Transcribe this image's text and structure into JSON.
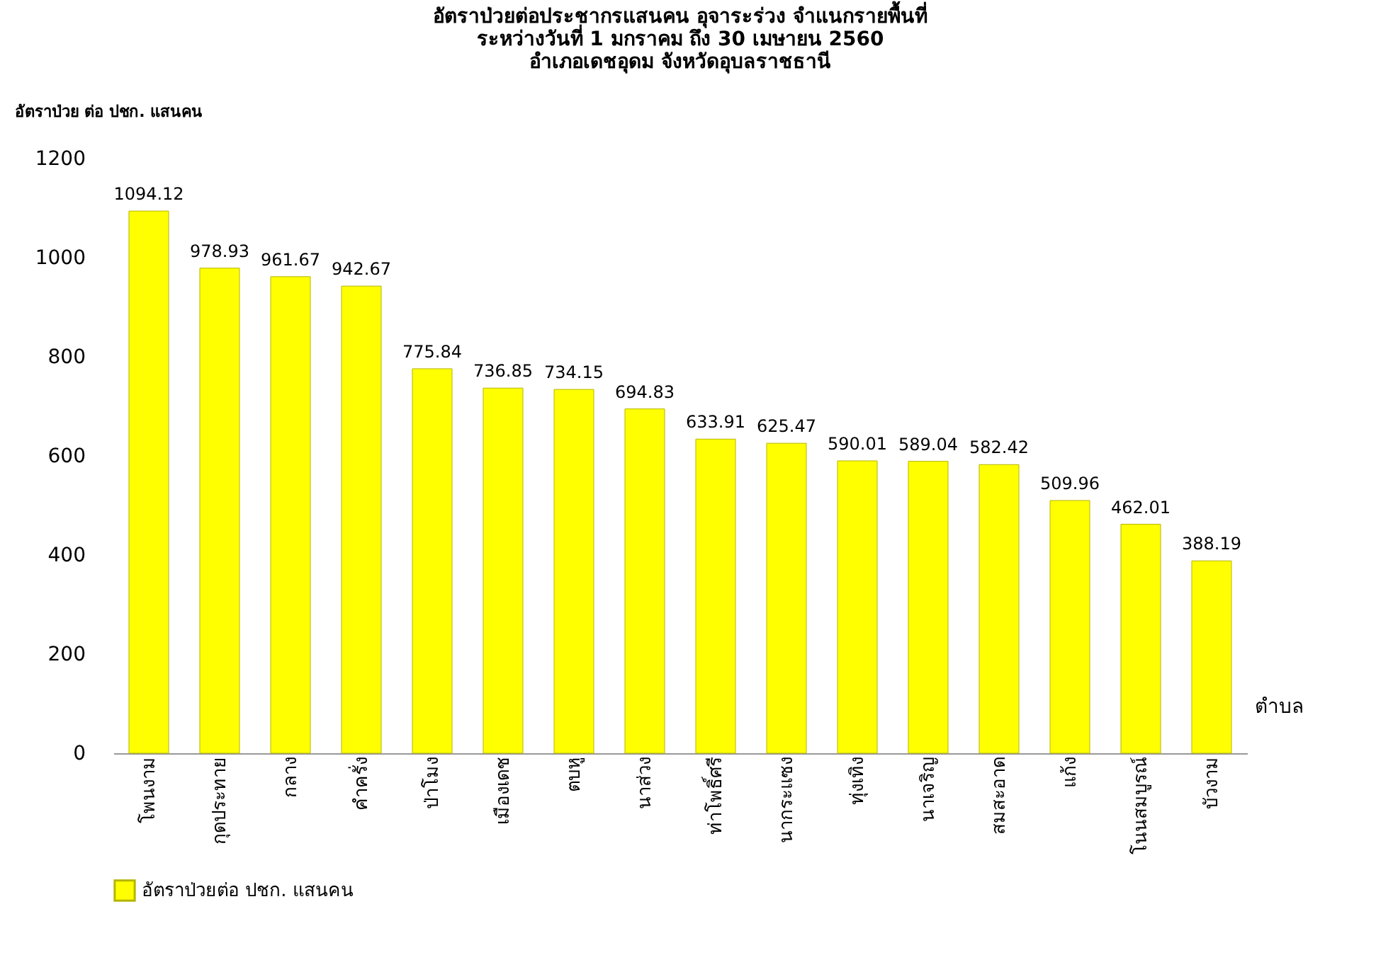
{
  "chart_data": {
    "type": "bar",
    "title": "อัตราป่วยต่อประชากรแสนคน อุจาระร่วง จำแนกรายพื้นที่\nระหว่างวันที่ 1 มกราคม ถึง 30 เมษายน 2560\nอำเภอเดชอุดม จังหวัดอุบลราชธานี",
    "ylabel": "อัตราป่วย ต่อ ปชก. แสนคน",
    "xlabel": "ตำบล",
    "categories": [
      "โพนงาม",
      "กุดประทาย",
      "กลาง",
      "คำครั่ง",
      "ป่าโมง",
      "เมืองเดช",
      "ตบหู",
      "นาส่วง",
      "ท่าโพธิ์ศรี",
      "นากระแซง",
      "ทุ่งเทิง",
      "นาเจริญ",
      "สมสะอาด",
      "แก้ง",
      "โนนสมบูรณ์",
      "บัวงาม"
    ],
    "series": [
      {
        "name": "อัตราป่วยต่อ ปชก. แสนคน",
        "color": "#ffff00",
        "values": [
          1094.12,
          978.93,
          961.67,
          942.67,
          775.84,
          736.85,
          734.15,
          694.83,
          633.91,
          625.47,
          590.01,
          589.04,
          582.42,
          509.96,
          462.01,
          388.19
        ]
      }
    ],
    "ylim": [
      0,
      1200
    ],
    "yticks": [
      0,
      200,
      400,
      600,
      800,
      1000,
      1200
    ],
    "grid": false,
    "legend": "bottom",
    "data_labels": true
  }
}
